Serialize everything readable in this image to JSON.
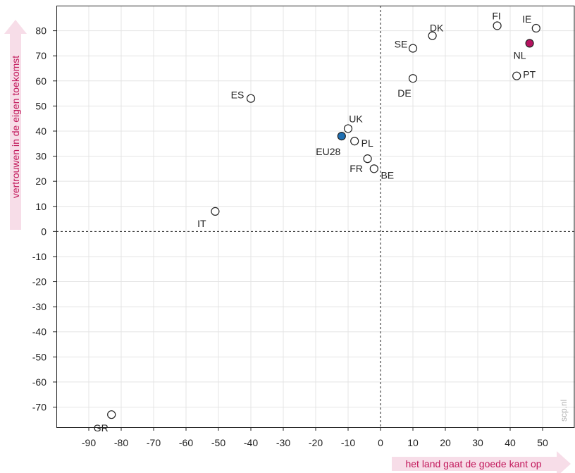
{
  "chart_data": {
    "type": "scatter",
    "xlabel": "het land gaat de goede kant op",
    "ylabel": "vertrouwen in de eigen toekomst",
    "xlim": [
      -100,
      60
    ],
    "ylim": [
      -78,
      90
    ],
    "x_ticks": [
      "-90",
      "-80",
      "-70",
      "-60",
      "-50",
      "-40",
      "-30",
      "-20",
      "-10",
      "0",
      "10",
      "20",
      "30",
      "40",
      "50"
    ],
    "y_ticks": [
      "80",
      "70",
      "60",
      "50",
      "40",
      "30",
      "20",
      "10",
      "0",
      "-10",
      "-20",
      "-30",
      "-40",
      "-50",
      "-60",
      "-70"
    ],
    "grid": true,
    "reference_lines": {
      "x": 0,
      "y": 0
    },
    "credit": "scp.nl",
    "colors": {
      "default_fill": "#ffffff",
      "default_stroke": "#222222",
      "EU28": "#1f6fb2",
      "NL": "#b5135f",
      "axis_title_bg": "#f7dde8",
      "axis_title_text": "#c2185b",
      "grid": "#e4e4e4"
    },
    "points": [
      {
        "label": "FI",
        "x": 36,
        "y": 82
      },
      {
        "label": "IE",
        "x": 48,
        "y": 81
      },
      {
        "label": "NL",
        "x": 46,
        "y": 75
      },
      {
        "label": "DK",
        "x": 16,
        "y": 78
      },
      {
        "label": "SE",
        "x": 10,
        "y": 73
      },
      {
        "label": "PT",
        "x": 42,
        "y": 62
      },
      {
        "label": "DE",
        "x": 10,
        "y": 61
      },
      {
        "label": "ES",
        "x": -40,
        "y": 53
      },
      {
        "label": "UK",
        "x": -10,
        "y": 41
      },
      {
        "label": "EU28",
        "x": -12,
        "y": 38
      },
      {
        "label": "PL",
        "x": -8,
        "y": 36
      },
      {
        "label": "FR",
        "x": -4,
        "y": 29
      },
      {
        "label": "BE",
        "x": -2,
        "y": 25
      },
      {
        "label": "IT",
        "x": -51,
        "y": 8
      },
      {
        "label": "GR",
        "x": -83,
        "y": -73
      }
    ]
  }
}
